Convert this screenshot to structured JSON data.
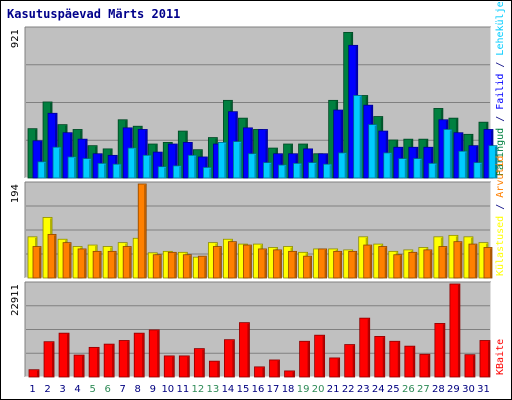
{
  "chart_data": {
    "type": "bar",
    "title": "Kasutuspäevad Märts 2011",
    "categories": [
      "1",
      "2",
      "3",
      "4",
      "5",
      "6",
      "7",
      "8",
      "9",
      "10",
      "11",
      "12",
      "13",
      "14",
      "15",
      "16",
      "17",
      "18",
      "19",
      "20",
      "21",
      "22",
      "23",
      "24",
      "25",
      "26",
      "27",
      "28",
      "29",
      "30",
      "31"
    ],
    "weekend_days": [
      5,
      6,
      12,
      13,
      19,
      20,
      26,
      27
    ],
    "colors": {
      "background": "#c0c0c0",
      "weekday_label": "#000080",
      "weekend_label": "#2e8b57",
      "pages": "#00ccff",
      "files": "#0000ff",
      "hits": "#008040",
      "visits": "#ffff00",
      "sites": "#ff8000",
      "kbytes": "#ff0000"
    },
    "panels": [
      {
        "name": "top",
        "max_label": "921",
        "ylim": [
          0,
          921
        ],
        "right_labels": [
          {
            "text": "Päringud",
            "color": "#008040"
          },
          {
            "text": " / ",
            "color": "#000080"
          },
          {
            "text": "Failid",
            "color": "#0000ff"
          },
          {
            "text": " / ",
            "color": "#000080"
          },
          {
            "text": "Leheküljed",
            "color": "#00ccff"
          }
        ],
        "series": [
          {
            "name": "Päringud",
            "values": [
              305,
              470,
              330,
              300,
              200,
              180,
              360,
              320,
              210,
              220,
              290,
              175,
              250,
              480,
              370,
              300,
              185,
              210,
              210,
              150,
              480,
              900,
              510,
              380,
              235,
              240,
              240,
              430,
              370,
              270,
              345
            ]
          },
          {
            "name": "Failid",
            "values": [
              230,
              400,
              280,
              240,
              150,
              140,
              310,
              300,
              160,
              210,
              220,
              130,
              210,
              410,
              310,
              300,
              150,
              150,
              180,
              150,
              420,
              820,
              450,
              290,
              190,
              190,
              190,
              360,
              280,
              200,
              300
            ]
          },
          {
            "name": "Leheküljed",
            "values": [
              100,
              190,
              130,
              120,
              90,
              85,
              185,
              140,
              70,
              75,
              140,
              65,
              220,
              225,
              150,
              95,
              80,
              90,
              95,
              85,
              155,
              510,
              330,
              155,
              120,
              120,
              90,
              300,
              165,
              95,
              200
            ]
          }
        ]
      },
      {
        "name": "middle",
        "max_label": "194",
        "ylim": [
          0,
          194
        ],
        "right_labels": [
          {
            "text": "Külastused",
            "color": "#ffff00"
          },
          {
            "text": " / ",
            "color": "#000080"
          },
          {
            "text": "Arvutid",
            "color": "#ff8000"
          }
        ],
        "series": [
          {
            "name": "Külastused",
            "values": [
              85,
              125,
              80,
              65,
              68,
              65,
              73,
              82,
              52,
              55,
              53,
              43,
              73,
              80,
              70,
              70,
              63,
              65,
              53,
              60,
              60,
              58,
              85,
              70,
              55,
              58,
              63,
              85,
              88,
              85,
              73
            ]
          },
          {
            "name": "Arvutid",
            "values": [
              65,
              90,
              73,
              60,
              55,
              55,
              65,
              194,
              48,
              53,
              48,
              45,
              65,
              75,
              68,
              60,
              58,
              55,
              45,
              60,
              55,
              55,
              68,
              65,
              48,
              53,
              58,
              65,
              75,
              70,
              63
            ]
          }
        ]
      },
      {
        "name": "bottom",
        "max_label": "22911",
        "ylim": [
          0,
          22911
        ],
        "right_labels": [
          {
            "text": "KBaite",
            "color": "#ff0000"
          }
        ],
        "series": [
          {
            "name": "KBaite",
            "values": [
              1800,
              8700,
              10800,
              5400,
              7300,
              8100,
              9000,
              10800,
              11600,
              5200,
              5200,
              7000,
              3900,
              9200,
              13400,
              2500,
              4200,
              1500,
              8800,
              10300,
              4700,
              8000,
              14500,
              10000,
              8800,
              7600,
              5600,
              13200,
              22911,
              5500,
              9000
            ]
          }
        ]
      }
    ]
  }
}
